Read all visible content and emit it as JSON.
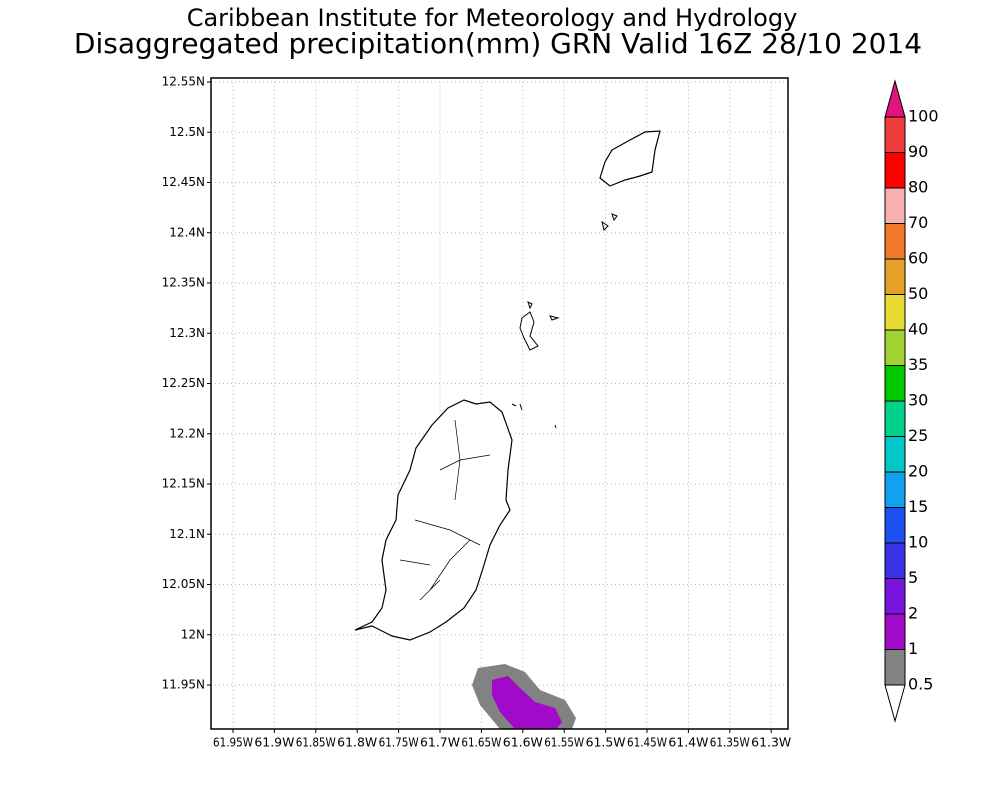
{
  "header": {
    "title": "Caribbean Institute for Meteorology and Hydrology",
    "subtitle": "Disaggregated precipitation(mm) GRN Valid 16Z 28/10 2014"
  },
  "axes": {
    "lat_labels": [
      "12.55N",
      "12.5N",
      "12.45N",
      "12.4N",
      "12.35N",
      "12.3N",
      "12.25N",
      "12.2N",
      "12.15N",
      "12.1N",
      "12.05N",
      "12N",
      "11.95N"
    ],
    "lon_labels": [
      "61.95W",
      "61.9W",
      "61.85W",
      "61.8W",
      "61.75W",
      "61.7W",
      "61.65W",
      "61.6W",
      "61.55W",
      "61.5W",
      "61.45W",
      "61.4W",
      "61.35W",
      "61.3W"
    ]
  },
  "legend": {
    "labels": [
      "100",
      "90",
      "80",
      "70",
      "60",
      "50",
      "40",
      "35",
      "30",
      "25",
      "20",
      "15",
      "10",
      "5",
      "2",
      "1",
      "0.5"
    ],
    "colors": [
      "#e0157f",
      "#f03c3c",
      "#ff0000",
      "#f8b0b0",
      "#f07828",
      "#e6a028",
      "#e6dc32",
      "#a0d232",
      "#00c800",
      "#00d28c",
      "#00c8c8",
      "#14a0f0",
      "#1e50f0",
      "#3c32e6",
      "#7814dc",
      "#a00ac8",
      "#828282",
      "#ffffff"
    ]
  }
}
